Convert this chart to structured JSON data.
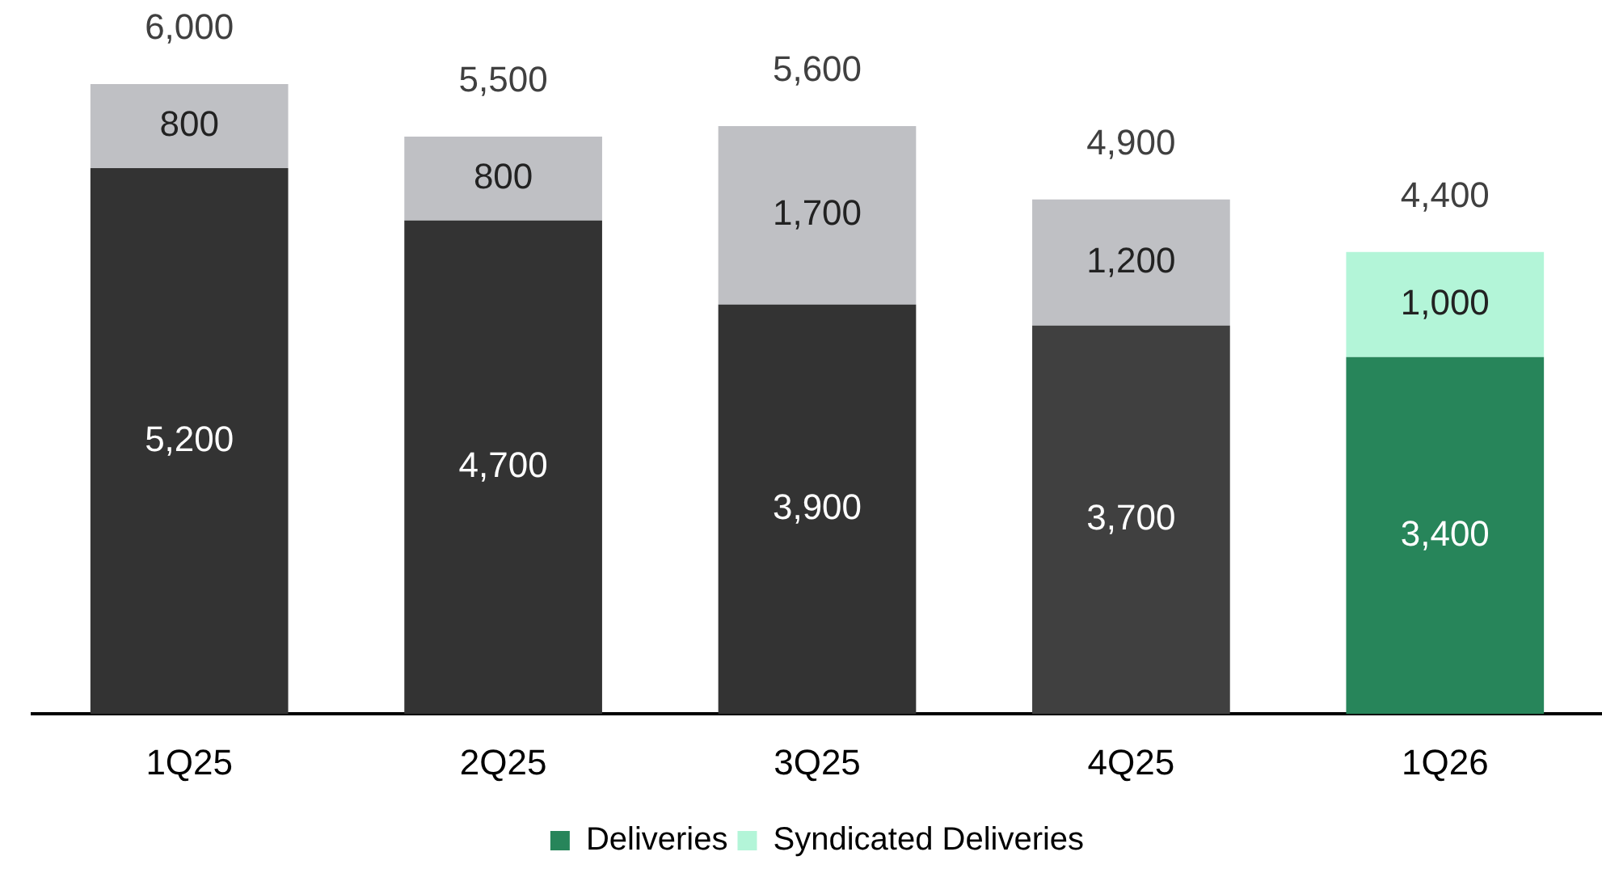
{
  "chart_data": {
    "type": "bar",
    "stacked": true,
    "categories": [
      "1Q25",
      "2Q25",
      "3Q25",
      "4Q25",
      "1Q26"
    ],
    "series": [
      {
        "name": "Deliveries",
        "color": "#27855a",
        "colors": [
          "#333333",
          "#333333",
          "#333333",
          "#404040",
          "#27855a"
        ],
        "values": [
          5200,
          4700,
          3900,
          3700,
          3400
        ],
        "value_labels": [
          "5,200",
          "4,700",
          "3,900",
          "3,700",
          "3,400"
        ]
      },
      {
        "name": "Syndicated Deliveries",
        "color": "#b3f5d8",
        "colors": [
          "#bfc0c4",
          "#bfc0c4",
          "#bfc0c4",
          "#bfc0c4",
          "#b3f5d8"
        ],
        "values": [
          800,
          800,
          1700,
          1200,
          1000
        ],
        "value_labels": [
          "800",
          "800",
          "1,700",
          "1,200",
          "1,000"
        ]
      }
    ],
    "totals": [
      "6,000",
      "5,500",
      "5,600",
      "4,900",
      "4,400"
    ],
    "legend": "bottom",
    "grid": false
  }
}
